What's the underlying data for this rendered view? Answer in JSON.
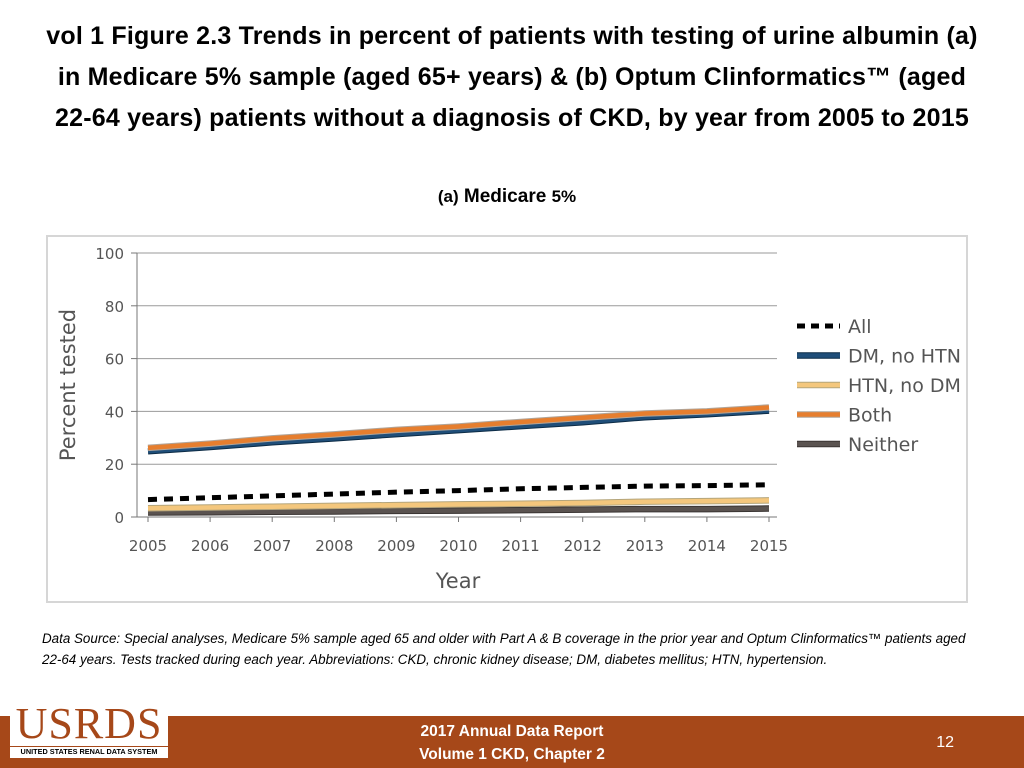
{
  "title_lines": [
    "vol 1 Figure 2.3 Trends in percent of patients with testing of urine albumin (a)",
    "in Medicare 5% sample (aged 65+ years) & (b) Optum Clinformatics™ (aged",
    "22-64 years) patients without a diagnosis of CKD, by year from 2005 to 2015"
  ],
  "panel": {
    "prefix": "(a)",
    "name": "Medicare",
    "suffix": "5%"
  },
  "chart_data": {
    "type": "line",
    "xlabel": "Year",
    "ylabel": "Percent tested",
    "ylim": [
      0,
      100
    ],
    "yticks": [
      0,
      20,
      40,
      60,
      80,
      100
    ],
    "x": [
      2005,
      2006,
      2007,
      2008,
      2009,
      2010,
      2011,
      2012,
      2013,
      2014,
      2015
    ],
    "grid": "horizontal",
    "legend_position": "right",
    "series": [
      {
        "name": "All",
        "color": "#000000",
        "dash": "dashed",
        "values": [
          6.6,
          7.3,
          8.0,
          8.7,
          9.4,
          10.0,
          10.7,
          11.2,
          11.7,
          11.9,
          12.2
        ]
      },
      {
        "name": "DM, no HTN",
        "color": "#1f4e79",
        "dash": "solid",
        "values": [
          24.9,
          26.5,
          28.3,
          29.8,
          31.4,
          32.9,
          34.4,
          35.9,
          37.8,
          38.9,
          40.3
        ]
      },
      {
        "name": "HTN, no DM",
        "color": "#f4c77d",
        "dash": "solid",
        "values": [
          3.3,
          3.6,
          3.9,
          4.2,
          4.5,
          4.8,
          5.0,
          5.3,
          5.8,
          6.0,
          6.3
        ]
      },
      {
        "name": "Both",
        "color": "#e67e2e",
        "dash": "solid",
        "values": [
          26.2,
          27.8,
          29.8,
          31.3,
          33.0,
          34.3,
          36.0,
          37.6,
          39.2,
          40.0,
          41.5
        ]
      },
      {
        "name": "Neither",
        "color": "#5a5350",
        "dash": "solid",
        "values": [
          1.7,
          1.8,
          2.0,
          2.1,
          2.3,
          2.4,
          2.6,
          2.8,
          3.0,
          3.0,
          3.2
        ]
      }
    ]
  },
  "source_note": "Data Source: Special analyses, Medicare 5% sample aged 65 and older with Part A & B coverage in the prior year and Optum Clinformatics™ patients aged 22-64 years. Tests tracked during each year. Abbreviations: CKD, chronic kidney disease; DM, diabetes mellitus; HTN, hypertension.",
  "footer": {
    "line1": "2017 Annual Data Report",
    "line2": "Volume 1 CKD, Chapter 2",
    "page_number": "12"
  },
  "logo": {
    "word": "USRDS",
    "subtitle": "UNITED STATES RENAL DATA SYSTEM"
  },
  "colors": {
    "footer_bar": "#a64819"
  }
}
